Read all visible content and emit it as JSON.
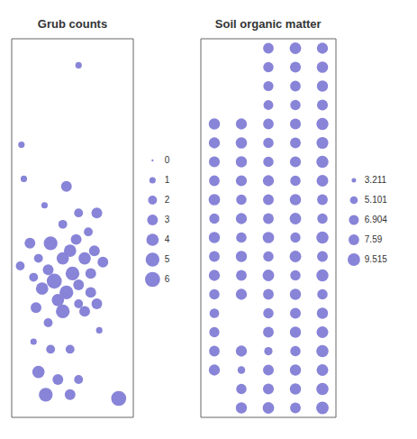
{
  "chart_data": [
    {
      "type": "scatter",
      "title": "Grub counts",
      "color": "#8884d8",
      "tick_labels": false,
      "xlim": [
        0,
        1
      ],
      "ylim": [
        0,
        1
      ],
      "x": [
        0.55,
        0.08,
        0.1,
        0.45,
        0.27,
        0.55,
        0.7,
        0.42,
        0.63,
        0.53,
        0.15,
        0.32,
        0.48,
        0.68,
        0.22,
        0.42,
        0.6,
        0.75,
        0.07,
        0.3,
        0.5,
        0.65,
        0.18,
        0.35,
        0.55,
        0.25,
        0.45,
        0.65,
        0.38,
        0.55,
        0.7,
        0.2,
        0.42,
        0.6,
        0.3,
        0.72,
        0.18,
        0.32,
        0.48,
        0.22,
        0.38,
        0.55,
        0.28,
        0.48,
        0.88
      ],
      "values": [
        0.93,
        0.72,
        0.63,
        0.61,
        0.56,
        0.54,
        0.54,
        0.51,
        0.49,
        0.47,
        0.46,
        0.46,
        0.44,
        0.44,
        0.42,
        0.42,
        0.42,
        0.41,
        0.4,
        0.39,
        0.38,
        0.38,
        0.37,
        0.36,
        0.35,
        0.34,
        0.33,
        0.33,
        0.31,
        0.3,
        0.3,
        0.29,
        0.28,
        0.28,
        0.25,
        0.23,
        0.2,
        0.18,
        0.18,
        0.12,
        0.1,
        0.1,
        0.06,
        0.06,
        0.05
      ],
      "sizes": [
        1,
        1,
        1,
        3,
        1,
        2,
        3,
        2,
        2,
        3,
        3,
        5,
        4,
        3,
        2,
        4,
        4,
        3,
        2,
        3,
        5,
        3,
        2,
        6,
        3,
        4,
        5,
        3,
        4,
        2,
        3,
        3,
        5,
        3,
        2,
        1,
        1,
        2,
        2,
        4,
        3,
        2,
        5,
        3,
        6
      ],
      "size_legend": [
        0,
        1,
        2,
        3,
        4,
        5,
        6
      ]
    },
    {
      "type": "scatter",
      "title": "Soil organic matter",
      "color": "#8884d8",
      "tick_labels": false,
      "xlim": [
        0.5,
        5.5
      ],
      "ylim": [
        0.5,
        20.5
      ],
      "x": [
        3,
        4,
        5,
        3,
        4,
        5,
        3,
        4,
        5,
        3,
        4,
        5,
        1,
        2,
        3,
        4,
        5,
        1,
        2,
        3,
        4,
        5,
        1,
        2,
        3,
        4,
        5,
        1,
        2,
        3,
        4,
        5,
        1,
        2,
        3,
        4,
        5,
        1,
        2,
        3,
        4,
        5,
        1,
        2,
        3,
        4,
        5,
        1,
        2,
        3,
        4,
        5,
        1,
        2,
        3,
        4,
        5,
        1,
        2,
        3,
        4,
        5,
        1,
        3,
        4,
        5,
        1,
        3,
        4,
        5,
        1,
        2,
        3,
        4,
        5,
        1,
        2,
        3,
        4,
        5,
        2,
        3,
        4,
        5,
        2,
        3,
        4,
        5
      ],
      "values": [
        20,
        20,
        20,
        19,
        19,
        19,
        18,
        18,
        18,
        17,
        17,
        17,
        16,
        16,
        16,
        16,
        16,
        15,
        15,
        15,
        15,
        15,
        14,
        14,
        14,
        14,
        14,
        13,
        13,
        13,
        13,
        13,
        12,
        12,
        12,
        12,
        12,
        11,
        11,
        11,
        11,
        11,
        10,
        10,
        10,
        10,
        10,
        9,
        9,
        9,
        9,
        9,
        8,
        8,
        8,
        8,
        8,
        7,
        7,
        7,
        7,
        7,
        6,
        6,
        6,
        6,
        5,
        5,
        5,
        5,
        4,
        4,
        4,
        4,
        4,
        3,
        3,
        3,
        3,
        3,
        2,
        2,
        2,
        2,
        1,
        1,
        1,
        1
      ],
      "sizes": [
        7.5,
        8.5,
        8.0,
        7.2,
        7.8,
        8.3,
        7.0,
        7.5,
        8.1,
        6.8,
        7.2,
        7.8,
        8.2,
        8.0,
        7.5,
        7.8,
        9.0,
        8.0,
        8.3,
        7.3,
        7.6,
        8.8,
        7.8,
        8.1,
        7.2,
        7.9,
        9.1,
        7.5,
        7.9,
        8.0,
        7.3,
        8.6,
        8.4,
        7.2,
        7.7,
        8.2,
        7.6,
        7.1,
        8.0,
        7.6,
        8.5,
        7.2,
        8.1,
        7.4,
        8.4,
        7.1,
        9.2,
        7.6,
        8.1,
        7.2,
        8.6,
        7.7,
        8.0,
        7.6,
        8.5,
        7.2,
        9.1,
        7.2,
        8.0,
        7.6,
        8.1,
        7.3,
        6.6,
        7.2,
        7.7,
        8.2,
        7.1,
        7.6,
        8.1,
        8.7,
        7.5,
        8.0,
        5.5,
        7.2,
        9.2,
        8.0,
        5.0,
        7.7,
        8.1,
        8.6,
        7.2,
        7.8,
        8.2,
        9.3,
        8.1,
        8.5,
        7.6,
        9.5
      ],
      "size_legend": [
        3.211,
        5.101,
        6.904,
        7.59,
        9.515
      ]
    }
  ]
}
